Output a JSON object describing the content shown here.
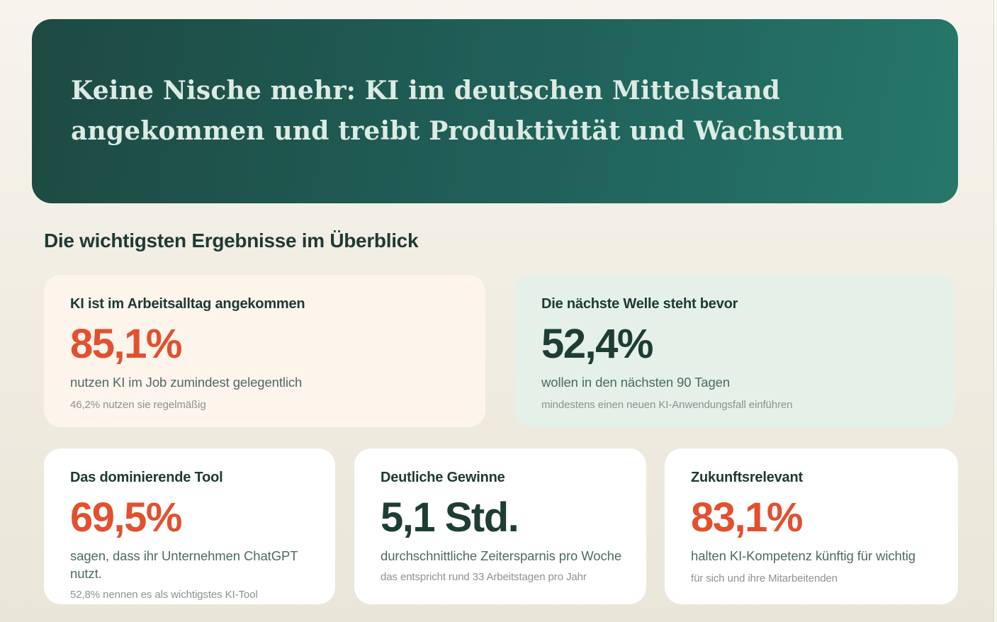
{
  "header": {
    "title_lines": [
      "Keine Nische mehr: KI im deutschen Mittelstand",
      "angekommen und treibt Produktivität und Wachstum"
    ]
  },
  "section": {
    "heading": "Die wichtigsten Ergebnisse im Überblick"
  },
  "colors": {
    "accent_orange": "#e2502e",
    "stat_green": "#1d3d35",
    "banner_gradient_start": "#1d4a42",
    "banner_gradient_end": "#26776a",
    "banner_text": "#dcebe4",
    "card_peach_bg": "#fdf4ec",
    "card_mint_bg": "#e4f0e8",
    "card_white_bg": "#ffffff"
  },
  "cards": [
    {
      "title": "KI ist im Arbeitsalltag angekommen",
      "value": "85,1%",
      "value_color": "#e2502e",
      "background": "#fdf4ec",
      "subtitle": "nutzen KI im Job zumindest gelegentlich",
      "note": "46,2% nutzen sie regelmäßig"
    },
    {
      "title": "Die nächste Welle steht bevor",
      "value": "52,4%",
      "value_color": "#1d3d35",
      "background": "#e4f0e8",
      "subtitle": "wollen in den nächsten 90 Tagen",
      "note": "mindestens einen neuen KI-Anwendungsfall einführen"
    },
    {
      "title": "Das dominierende Tool",
      "value": "69,5%",
      "value_color": "#e2502e",
      "background": "#ffffff",
      "subtitle": "sagen, dass ihr Unternehmen ChatGPT nutzt.",
      "note": "52,8% nennen es als wichtigstes KI-Tool"
    },
    {
      "title": "Deutliche Gewinne",
      "value": "5,1 Std.",
      "value_color": "#1d3d35",
      "background": "#ffffff",
      "subtitle": "durchschnittliche Zeitersparnis pro Woche",
      "note": "das entspricht rund 33 Arbeitstagen pro Jahr"
    },
    {
      "title": "Zukunftsrelevant",
      "value": "83,1%",
      "value_color": "#e2502e",
      "background": "#ffffff",
      "subtitle": "halten KI-Kompetenz künftig für wichtig",
      "note": "für sich und ihre Mitarbeitenden"
    }
  ]
}
